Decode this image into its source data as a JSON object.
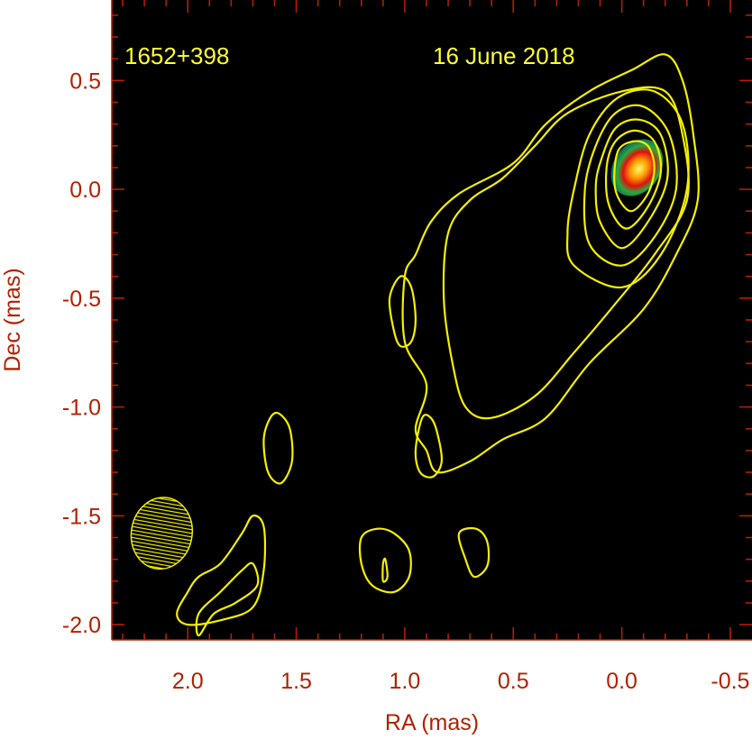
{
  "chart_data": {
    "type": "contour",
    "source_label": "1652+398",
    "date_label": "16 June 2018",
    "xlabel": "RA (mas)",
    "ylabel": "Dec (mas)",
    "xlim": [
      2.35,
      -0.6
    ],
    "ylim": [
      -2.07,
      0.87
    ],
    "x_ticks": [
      2.0,
      1.5,
      1.0,
      0.5,
      0.0,
      -0.5
    ],
    "x_tick_labels": [
      "2.0",
      "1.5",
      "1.0",
      "0.5",
      "0.0",
      "-0.5"
    ],
    "y_ticks": [
      0.5,
      0.0,
      -0.5,
      -1.0,
      -1.5,
      -2.0
    ],
    "y_tick_labels": [
      "0.5",
      "0.0",
      "-0.5",
      "-1.0",
      "-1.5",
      "-2.0"
    ],
    "x_minor_step": 0.1,
    "y_minor_step": 0.1,
    "background": "#000000",
    "contour_color": "#f5f000",
    "axis_color": "#b22000",
    "core_peak": {
      "ra": -0.07,
      "dec": 0.1
    },
    "beam": {
      "ra": 2.12,
      "dec": -1.58,
      "major": 0.33,
      "minor": 0.14,
      "pa_deg": 10
    },
    "contours": [
      {
        "name": "outer-1",
        "points": [
          [
            1.0,
            -0.4
          ],
          [
            1.0,
            -0.7
          ],
          [
            0.9,
            -0.9
          ],
          [
            0.95,
            -1.1
          ],
          [
            0.9,
            -1.2
          ],
          [
            0.85,
            -1.3
          ],
          [
            0.7,
            -1.25
          ],
          [
            0.55,
            -1.15
          ],
          [
            0.35,
            -1.05
          ],
          [
            0.15,
            -0.8
          ],
          [
            -0.1,
            -0.55
          ],
          [
            -0.25,
            -0.3
          ],
          [
            -0.35,
            -0.05
          ],
          [
            -0.33,
            0.25
          ],
          [
            -0.28,
            0.5
          ],
          [
            -0.2,
            0.62
          ],
          [
            -0.05,
            0.55
          ],
          [
            0.15,
            0.45
          ],
          [
            0.35,
            0.3
          ],
          [
            0.5,
            0.12
          ],
          [
            0.75,
            -0.02
          ],
          [
            0.88,
            -0.15
          ],
          [
            0.95,
            -0.3
          ]
        ]
      },
      {
        "name": "outer-2",
        "points": [
          [
            0.8,
            -0.2
          ],
          [
            0.82,
            -0.5
          ],
          [
            0.78,
            -0.8
          ],
          [
            0.72,
            -1.0
          ],
          [
            0.6,
            -1.05
          ],
          [
            0.4,
            -0.95
          ],
          [
            0.22,
            -0.75
          ],
          [
            0.05,
            -0.55
          ],
          [
            -0.15,
            -0.3
          ],
          [
            -0.3,
            -0.05
          ],
          [
            -0.28,
            0.25
          ],
          [
            -0.2,
            0.45
          ],
          [
            0.0,
            0.45
          ],
          [
            0.25,
            0.35
          ],
          [
            0.4,
            0.2
          ],
          [
            0.55,
            0.05
          ],
          [
            0.7,
            -0.05
          ]
        ]
      },
      {
        "name": "core-1",
        "points": [
          [
            0.22,
            -0.35
          ],
          [
            0.0,
            -0.45
          ],
          [
            -0.18,
            -0.3
          ],
          [
            -0.3,
            0.0
          ],
          [
            -0.28,
            0.3
          ],
          [
            -0.15,
            0.45
          ],
          [
            0.02,
            0.42
          ],
          [
            0.15,
            0.25
          ],
          [
            0.22,
            0.0
          ],
          [
            0.25,
            -0.2
          ]
        ]
      },
      {
        "name": "core-2",
        "points": [
          [
            0.15,
            -0.25
          ],
          [
            0.0,
            -0.35
          ],
          [
            -0.15,
            -0.22
          ],
          [
            -0.25,
            0.0
          ],
          [
            -0.22,
            0.25
          ],
          [
            -0.1,
            0.38
          ],
          [
            0.03,
            0.35
          ],
          [
            0.12,
            0.2
          ],
          [
            0.17,
            0.0
          ]
        ]
      },
      {
        "name": "core-3",
        "points": [
          [
            0.1,
            -0.15
          ],
          [
            0.0,
            -0.27
          ],
          [
            -0.12,
            -0.15
          ],
          [
            -0.21,
            0.05
          ],
          [
            -0.18,
            0.25
          ],
          [
            -0.08,
            0.32
          ],
          [
            0.03,
            0.28
          ],
          [
            0.1,
            0.12
          ],
          [
            0.12,
            0.0
          ]
        ]
      },
      {
        "name": "core-4",
        "points": [
          [
            0.06,
            -0.07
          ],
          [
            -0.02,
            -0.18
          ],
          [
            -0.12,
            -0.08
          ],
          [
            -0.18,
            0.08
          ],
          [
            -0.15,
            0.22
          ],
          [
            -0.06,
            0.27
          ],
          [
            0.03,
            0.22
          ],
          [
            0.07,
            0.1
          ]
        ]
      },
      {
        "name": "core-5",
        "points": [
          [
            0.03,
            0.0
          ],
          [
            -0.04,
            -0.1
          ],
          [
            -0.12,
            -0.02
          ],
          [
            -0.15,
            0.1
          ],
          [
            -0.12,
            0.2
          ],
          [
            -0.05,
            0.22
          ],
          [
            0.02,
            0.17
          ]
        ]
      },
      {
        "name": "knot-1",
        "points": [
          [
            1.07,
            -0.5
          ],
          [
            1.05,
            -0.65
          ],
          [
            1.02,
            -0.72
          ],
          [
            0.97,
            -0.7
          ],
          [
            0.95,
            -0.6
          ],
          [
            0.97,
            -0.45
          ],
          [
            1.02,
            -0.4
          ]
        ]
      },
      {
        "name": "knot-2",
        "points": [
          [
            0.92,
            -1.05
          ],
          [
            0.95,
            -1.2
          ],
          [
            0.93,
            -1.3
          ],
          [
            0.87,
            -1.32
          ],
          [
            0.83,
            -1.25
          ],
          [
            0.85,
            -1.12
          ],
          [
            0.88,
            -1.05
          ]
        ]
      },
      {
        "name": "knot-3",
        "points": [
          [
            1.58,
            -1.03
          ],
          [
            1.53,
            -1.1
          ],
          [
            1.52,
            -1.25
          ],
          [
            1.57,
            -1.35
          ],
          [
            1.63,
            -1.3
          ],
          [
            1.65,
            -1.15
          ],
          [
            1.62,
            -1.05
          ]
        ]
      },
      {
        "name": "knot-4",
        "points": [
          [
            1.2,
            -1.6
          ],
          [
            1.2,
            -1.72
          ],
          [
            1.15,
            -1.82
          ],
          [
            1.05,
            -1.85
          ],
          [
            0.98,
            -1.78
          ],
          [
            0.98,
            -1.66
          ],
          [
            1.05,
            -1.58
          ],
          [
            1.13,
            -1.56
          ]
        ]
      },
      {
        "name": "knot-5",
        "points": [
          [
            1.1,
            -1.72
          ],
          [
            1.1,
            -1.8
          ],
          [
            1.08,
            -1.78
          ],
          [
            1.09,
            -1.7
          ]
        ]
      },
      {
        "name": "knot-6",
        "points": [
          [
            0.75,
            -1.58
          ],
          [
            0.72,
            -1.7
          ],
          [
            0.68,
            -1.78
          ],
          [
            0.62,
            -1.73
          ],
          [
            0.62,
            -1.62
          ],
          [
            0.67,
            -1.56
          ]
        ]
      },
      {
        "name": "knot-7",
        "points": [
          [
            1.95,
            -1.78
          ],
          [
            1.85,
            -1.72
          ],
          [
            1.75,
            -1.58
          ],
          [
            1.7,
            -1.5
          ],
          [
            1.65,
            -1.55
          ],
          [
            1.65,
            -1.75
          ],
          [
            1.7,
            -1.92
          ],
          [
            1.85,
            -1.98
          ],
          [
            2.0,
            -2.0
          ],
          [
            2.05,
            -1.95
          ],
          [
            2.0,
            -1.85
          ]
        ]
      },
      {
        "name": "knot-8",
        "points": [
          [
            1.95,
            -2.05
          ],
          [
            1.95,
            -1.95
          ],
          [
            1.85,
            -1.85
          ],
          [
            1.75,
            -1.75
          ],
          [
            1.7,
            -1.72
          ],
          [
            1.68,
            -1.82
          ],
          [
            1.78,
            -1.9
          ],
          [
            1.88,
            -1.95
          ]
        ]
      }
    ]
  }
}
